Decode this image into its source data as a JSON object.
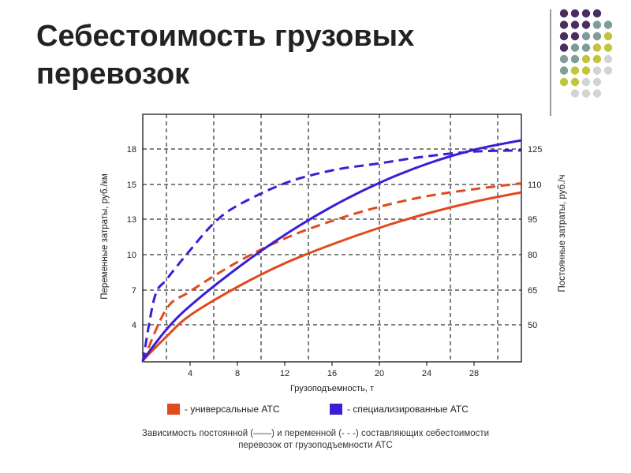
{
  "slide": {
    "title_line1": "Себестоимость грузовых",
    "title_line2": "перевозок",
    "caption_line1": "Зависимость постоянной (——) и переменной (- - -) составляющих себестоимости",
    "caption_line2": "перевозок от грузоподъемности АТС"
  },
  "decor": {
    "dot_colors": [
      "#4b2c5e",
      "#7e9c9c",
      "#c2c43a",
      "#d3d3d3"
    ]
  },
  "chart_data": {
    "type": "line",
    "xlabel": "Грузоподъемность, т",
    "ylabel_left": "Переменные затраты, руб./км",
    "ylabel_right": "Постоянные затраты, руб./ч",
    "x_ticks": [
      "4",
      "8",
      "12",
      "16",
      "20",
      "24",
      "28"
    ],
    "y_left_ticks": [
      "4",
      "7",
      "10",
      "13",
      "15",
      "18"
    ],
    "y_right_ticks": [
      "50",
      "65",
      "80",
      "95",
      "110",
      "125"
    ],
    "xlim": [
      0,
      32
    ],
    "grid": true,
    "legend": [
      {
        "label": "- универсальные АТС",
        "color": "#e04a1c"
      },
      {
        "label": "- специализированные АТС",
        "color": "#3a1ed6"
      }
    ],
    "series": [
      {
        "group": "универсальные АТС",
        "style": "solid",
        "axis": "right",
        "color": "#e04a1c",
        "x": [
          0,
          2,
          4,
          8,
          12,
          16,
          20,
          24,
          28,
          32
        ],
        "y": [
          35,
          45,
          54,
          66,
          76,
          84,
          91,
          97,
          102,
          106
        ]
      },
      {
        "group": "универсальные АТС",
        "style": "dashed",
        "axis": "left",
        "color": "#e04a1c",
        "x": [
          0,
          2,
          4,
          8,
          12,
          16,
          20,
          24,
          28,
          32
        ],
        "y": [
          0,
          4.5,
          6.0,
          8.5,
          10.5,
          12.0,
          13.2,
          14.1,
          14.7,
          15.2
        ]
      },
      {
        "group": "специализированные АТС",
        "style": "solid",
        "axis": "right",
        "color": "#3a1ed6",
        "x": [
          0,
          2,
          4,
          8,
          12,
          16,
          20,
          24,
          28,
          32
        ],
        "y": [
          35,
          48,
          58,
          74,
          88,
          100,
          110,
          118,
          124,
          128
        ]
      },
      {
        "group": "специализированные АТС",
        "style": "dashed",
        "axis": "left",
        "color": "#3a1ed6",
        "x": [
          0,
          1,
          2,
          4,
          6,
          8,
          12,
          16,
          20,
          24,
          28,
          32
        ],
        "y": [
          0,
          5.5,
          7.0,
          9.5,
          11.8,
          13.3,
          15.2,
          16.3,
          16.9,
          17.5,
          17.9,
          18.0
        ]
      }
    ]
  }
}
